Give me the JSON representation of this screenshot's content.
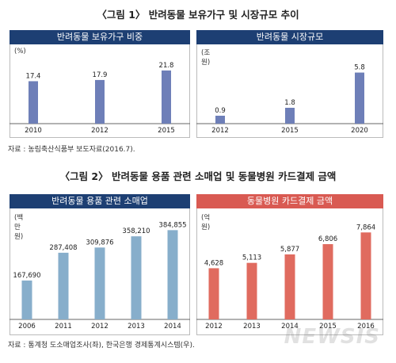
{
  "figure1": {
    "title": "〈그림 1〉 반려동물 보유가구 및 시장규모 추이",
    "source": "자료 : 농림축산식품부 보도자료(2016.7).",
    "charts": [
      {
        "header": "반려동물 보유가구 비중",
        "unit": "(%)",
        "color": "#6e7fb8"
      },
      {
        "header": "반려동물 시장규모",
        "unit": "(조 원)",
        "color": "#6e7fb8"
      }
    ]
  },
  "figure2": {
    "title": "〈그림 2〉 반려동물 용품 관련 소매업 및 동물병원 카드결제 금액",
    "source": "자료 : 통계청 도소매업조사(좌), 한국은행 경제통계시스템(우).",
    "charts": [
      {
        "header": "반려동물 용품 관련 소매업",
        "unit": "(백만 원)",
        "color": "#87aecb"
      },
      {
        "header": "동물병원 카드결제 금액",
        "unit": "(억 원)",
        "color": "#e06b5f"
      }
    ]
  },
  "watermark": "NEWSIS",
  "chart_data": [
    {
      "type": "bar",
      "title": "반려동물 보유가구 비중",
      "ylabel": "(%)",
      "categories": [
        "2010",
        "2012",
        "2015"
      ],
      "values": [
        17.4,
        17.9,
        21.8
      ],
      "labels": [
        "17.4",
        "17.9",
        "21.8"
      ],
      "ylim": [
        0,
        26
      ]
    },
    {
      "type": "bar",
      "title": "반려동물 시장규모",
      "ylabel": "(조 원)",
      "categories": [
        "2012",
        "2015",
        "2020"
      ],
      "values": [
        0.9,
        1.8,
        5.8
      ],
      "labels": [
        "0.9",
        "1.8",
        "5.8"
      ],
      "ylim": [
        0,
        7.2
      ]
    },
    {
      "type": "bar",
      "title": "반려동물 용품 관련 소매업",
      "ylabel": "(백만 원)",
      "categories": [
        "2006",
        "2011",
        "2012",
        "2013",
        "2014"
      ],
      "values": [
        167690,
        287408,
        309876,
        358210,
        384855
      ],
      "labels": [
        "167,690",
        "287,408",
        "309,876",
        "358,210",
        "384,855"
      ],
      "ylim": [
        0,
        410000
      ]
    },
    {
      "type": "bar",
      "title": "동물병원 카드결제 금액",
      "ylabel": "(억 원)",
      "categories": [
        "2012",
        "2013",
        "2014",
        "2015",
        "2016"
      ],
      "values": [
        4628,
        5113,
        5877,
        6806,
        7864
      ],
      "labels": [
        "4,628",
        "5,113",
        "5,877",
        "6,806",
        "7,864"
      ],
      "ylim": [
        0,
        8600
      ]
    }
  ]
}
